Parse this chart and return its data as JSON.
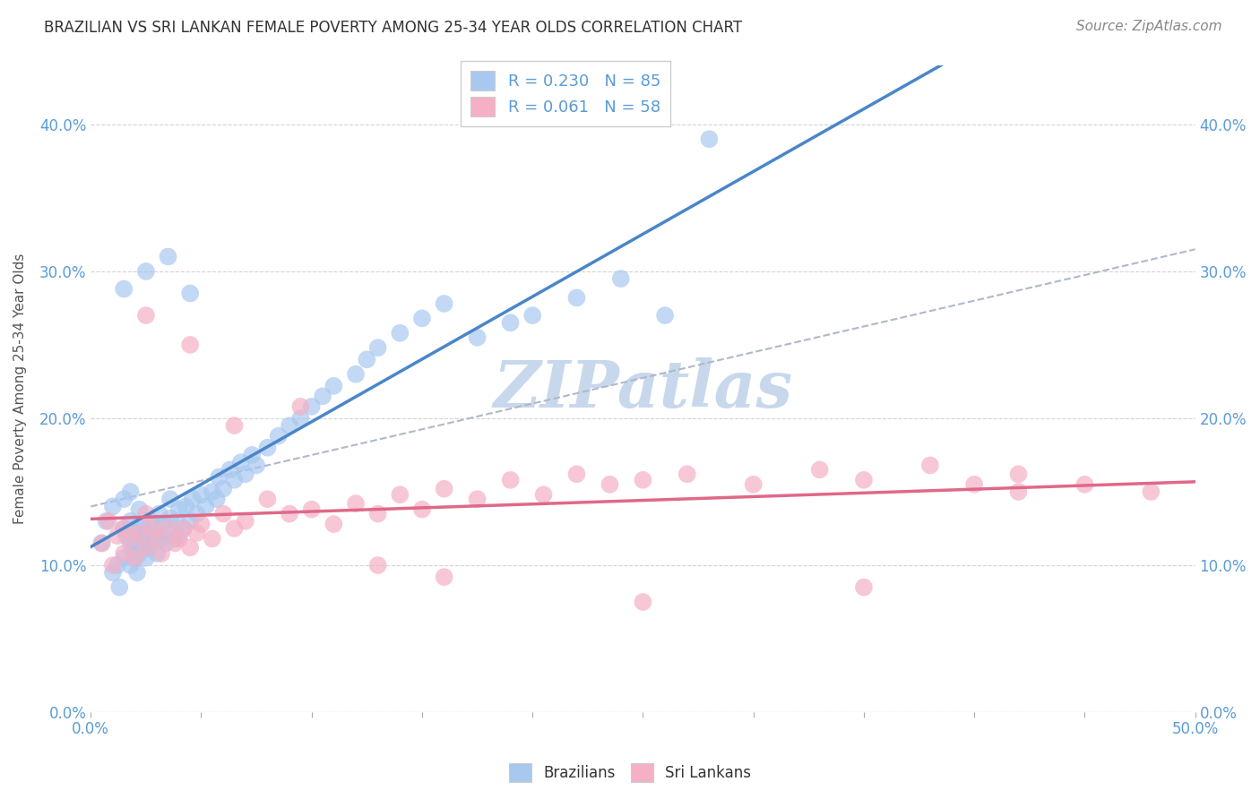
{
  "title": "BRAZILIAN VS SRI LANKAN FEMALE POVERTY AMONG 25-34 YEAR OLDS CORRELATION CHART",
  "source": "Source: ZipAtlas.com",
  "ylabel": "Female Poverty Among 25-34 Year Olds",
  "xlim": [
    0.0,
    0.5
  ],
  "ylim": [
    0.0,
    0.44
  ],
  "xticks": [
    0.0,
    0.05,
    0.1,
    0.15,
    0.2,
    0.25,
    0.3,
    0.35,
    0.4,
    0.45,
    0.5
  ],
  "yticks": [
    0.0,
    0.1,
    0.2,
    0.3,
    0.4
  ],
  "ytick_labels": [
    "0.0%",
    "10.0%",
    "20.0%",
    "30.0%",
    "40.0%"
  ],
  "brazil_R": 0.23,
  "brazil_N": 85,
  "srilanka_R": 0.061,
  "srilanka_N": 58,
  "brazil_color": "#a8c8f0",
  "srilanka_color": "#f5b0c5",
  "brazil_line_color": "#4a86c8",
  "srilanka_line_color": "#e06888",
  "dashed_line_color": "#b0b8c8",
  "watermark_color": "#c8d8ec",
  "brazil_x": [
    0.005,
    0.007,
    0.01,
    0.01,
    0.012,
    0.013,
    0.015,
    0.015,
    0.015,
    0.016,
    0.018,
    0.018,
    0.018,
    0.018,
    0.019,
    0.02,
    0.02,
    0.021,
    0.021,
    0.022,
    0.022,
    0.022,
    0.023,
    0.023,
    0.024,
    0.025,
    0.025,
    0.026,
    0.027,
    0.028,
    0.029,
    0.03,
    0.03,
    0.031,
    0.032,
    0.033,
    0.034,
    0.035,
    0.036,
    0.036,
    0.038,
    0.039,
    0.04,
    0.04,
    0.042,
    0.043,
    0.045,
    0.046,
    0.048,
    0.05,
    0.052,
    0.055,
    0.057,
    0.058,
    0.06,
    0.063,
    0.065,
    0.068,
    0.07,
    0.073,
    0.075,
    0.08,
    0.085,
    0.09,
    0.095,
    0.1,
    0.105,
    0.11,
    0.12,
    0.125,
    0.13,
    0.14,
    0.15,
    0.16,
    0.175,
    0.19,
    0.2,
    0.22,
    0.24,
    0.26,
    0.015,
    0.025,
    0.035,
    0.045,
    0.28
  ],
  "brazil_y": [
    0.115,
    0.13,
    0.095,
    0.14,
    0.1,
    0.085,
    0.105,
    0.125,
    0.145,
    0.12,
    0.1,
    0.115,
    0.13,
    0.15,
    0.11,
    0.105,
    0.125,
    0.095,
    0.115,
    0.108,
    0.122,
    0.138,
    0.112,
    0.128,
    0.118,
    0.105,
    0.122,
    0.112,
    0.13,
    0.115,
    0.125,
    0.108,
    0.12,
    0.135,
    0.118,
    0.128,
    0.115,
    0.122,
    0.132,
    0.145,
    0.118,
    0.13,
    0.12,
    0.138,
    0.125,
    0.14,
    0.13,
    0.145,
    0.135,
    0.148,
    0.14,
    0.15,
    0.145,
    0.16,
    0.152,
    0.165,
    0.158,
    0.17,
    0.162,
    0.175,
    0.168,
    0.18,
    0.188,
    0.195,
    0.2,
    0.208,
    0.215,
    0.222,
    0.23,
    0.24,
    0.248,
    0.258,
    0.268,
    0.278,
    0.255,
    0.265,
    0.27,
    0.282,
    0.295,
    0.27,
    0.288,
    0.3,
    0.31,
    0.285,
    0.39
  ],
  "srilanka_x": [
    0.005,
    0.008,
    0.01,
    0.012,
    0.015,
    0.015,
    0.018,
    0.02,
    0.022,
    0.025,
    0.025,
    0.028,
    0.03,
    0.032,
    0.035,
    0.038,
    0.04,
    0.042,
    0.045,
    0.048,
    0.05,
    0.055,
    0.06,
    0.065,
    0.07,
    0.08,
    0.09,
    0.1,
    0.11,
    0.12,
    0.13,
    0.14,
    0.15,
    0.16,
    0.175,
    0.19,
    0.205,
    0.22,
    0.235,
    0.25,
    0.27,
    0.3,
    0.33,
    0.35,
    0.38,
    0.4,
    0.42,
    0.45,
    0.025,
    0.045,
    0.065,
    0.095,
    0.13,
    0.16,
    0.25,
    0.35,
    0.42,
    0.48
  ],
  "srilanka_y": [
    0.115,
    0.13,
    0.1,
    0.12,
    0.108,
    0.125,
    0.118,
    0.105,
    0.122,
    0.112,
    0.135,
    0.125,
    0.118,
    0.108,
    0.125,
    0.115,
    0.118,
    0.125,
    0.112,
    0.122,
    0.128,
    0.118,
    0.135,
    0.125,
    0.13,
    0.145,
    0.135,
    0.138,
    0.128,
    0.142,
    0.135,
    0.148,
    0.138,
    0.152,
    0.145,
    0.158,
    0.148,
    0.162,
    0.155,
    0.158,
    0.162,
    0.155,
    0.165,
    0.158,
    0.168,
    0.155,
    0.162,
    0.155,
    0.27,
    0.25,
    0.195,
    0.208,
    0.1,
    0.092,
    0.075,
    0.085,
    0.15,
    0.15
  ]
}
